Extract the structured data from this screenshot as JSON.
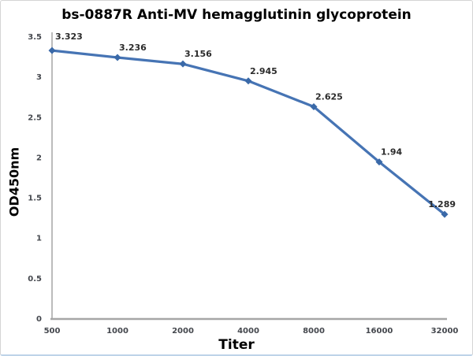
{
  "chart_data": {
    "type": "line",
    "title": "bs-0887R Anti-MV hemagglutinin glycoprotein",
    "xlabel": "Titer",
    "ylabel": "OD450nm",
    "categories": [
      "500",
      "1000",
      "2000",
      "4000",
      "8000",
      "16000",
      "32000"
    ],
    "series": [
      {
        "name": "OD450nm",
        "values": [
          3.323,
          3.236,
          3.156,
          2.945,
          2.625,
          1.94,
          1.289
        ],
        "point_labels": [
          "3.323",
          "3.236",
          "3.156",
          "2.945",
          "2.625",
          "1.94",
          "1.289"
        ]
      }
    ],
    "ylim": [
      0,
      3.5
    ],
    "ytick_labels": [
      "0",
      "0.5",
      "1",
      "1.5",
      "2",
      "2.5",
      "3",
      "3.5"
    ],
    "x_scale": "category (doubling titer steps)",
    "grid": false,
    "legend_position": "none",
    "marker": "diamond",
    "colors": {
      "series_line": "#4674b4",
      "series_marker": "#3a69a8",
      "axis_line": "#a6a6a6",
      "tick_label": "#45484e",
      "data_label": "#2b2b2b",
      "title_text": "#000000"
    }
  }
}
